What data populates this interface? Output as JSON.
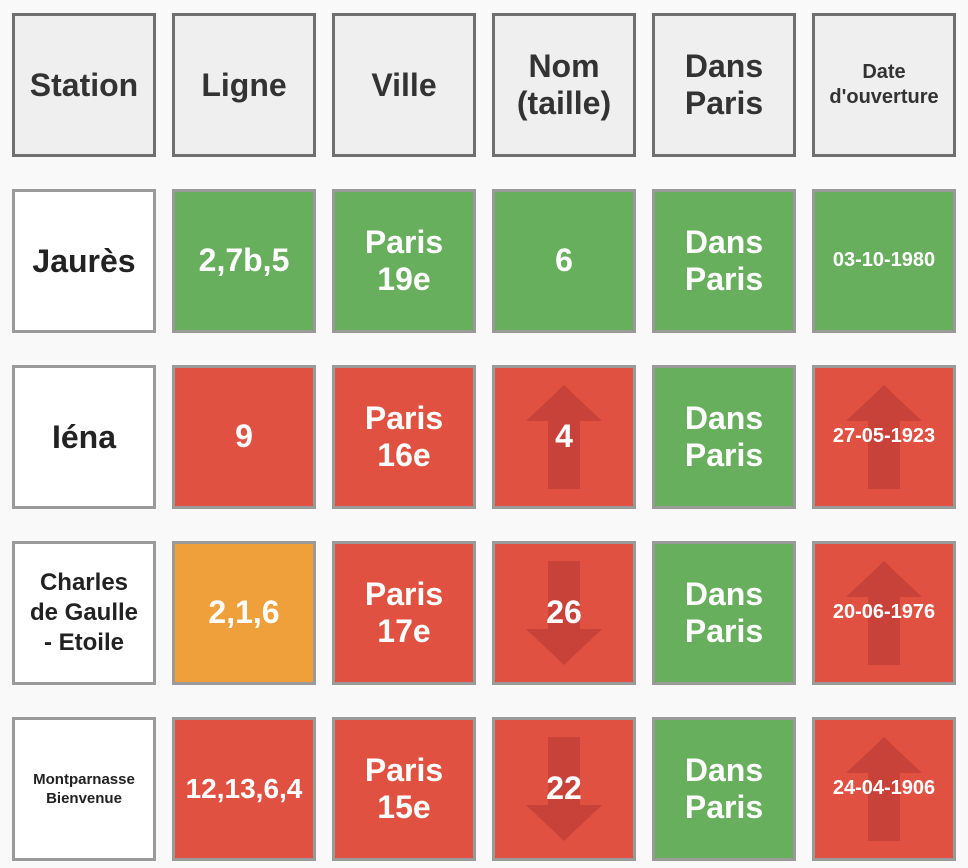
{
  "headers": {
    "station": "Station",
    "ligne": "Ligne",
    "ville": "Ville",
    "nom": "Nom\n(taille)",
    "dans_paris": "Dans\nParis",
    "date": "Date\nd'ouverture"
  },
  "colors": {
    "correct": "#67ae5d",
    "wrong": "#e05142",
    "partial": "#f0a03a",
    "arrow": "#c9423a"
  },
  "rows": [
    {
      "station": "Jaurès",
      "ligne": {
        "text": "2,7b,5",
        "status": "correct"
      },
      "ville": {
        "text": "Paris\n19e",
        "status": "correct"
      },
      "nom": {
        "text": "6",
        "status": "correct",
        "arrow": "none"
      },
      "dans_paris": {
        "text": "Dans\nParis",
        "status": "correct"
      },
      "date": {
        "text": "03-10-1980",
        "status": "correct",
        "arrow": "none"
      }
    },
    {
      "station": "Iéna",
      "ligne": {
        "text": "9",
        "status": "wrong"
      },
      "ville": {
        "text": "Paris\n16e",
        "status": "wrong"
      },
      "nom": {
        "text": "4",
        "status": "wrong",
        "arrow": "up"
      },
      "dans_paris": {
        "text": "Dans\nParis",
        "status": "correct"
      },
      "date": {
        "text": "27-05-1923",
        "status": "wrong",
        "arrow": "up"
      }
    },
    {
      "station": "Charles\nde Gaulle\n- Etoile",
      "ligne": {
        "text": "2,1,6",
        "status": "partial"
      },
      "ville": {
        "text": "Paris\n17e",
        "status": "wrong"
      },
      "nom": {
        "text": "26",
        "status": "wrong",
        "arrow": "down"
      },
      "dans_paris": {
        "text": "Dans\nParis",
        "status": "correct"
      },
      "date": {
        "text": "20-06-1976",
        "status": "wrong",
        "arrow": "up"
      }
    },
    {
      "station": "Montparnasse\nBienvenue",
      "ligne": {
        "text": "12,13,6,4",
        "status": "wrong"
      },
      "ville": {
        "text": "Paris\n15e",
        "status": "wrong"
      },
      "nom": {
        "text": "22",
        "status": "wrong",
        "arrow": "down"
      },
      "dans_paris": {
        "text": "Dans\nParis",
        "status": "correct"
      },
      "date": {
        "text": "24-04-1906",
        "status": "wrong",
        "arrow": "up"
      }
    }
  ]
}
